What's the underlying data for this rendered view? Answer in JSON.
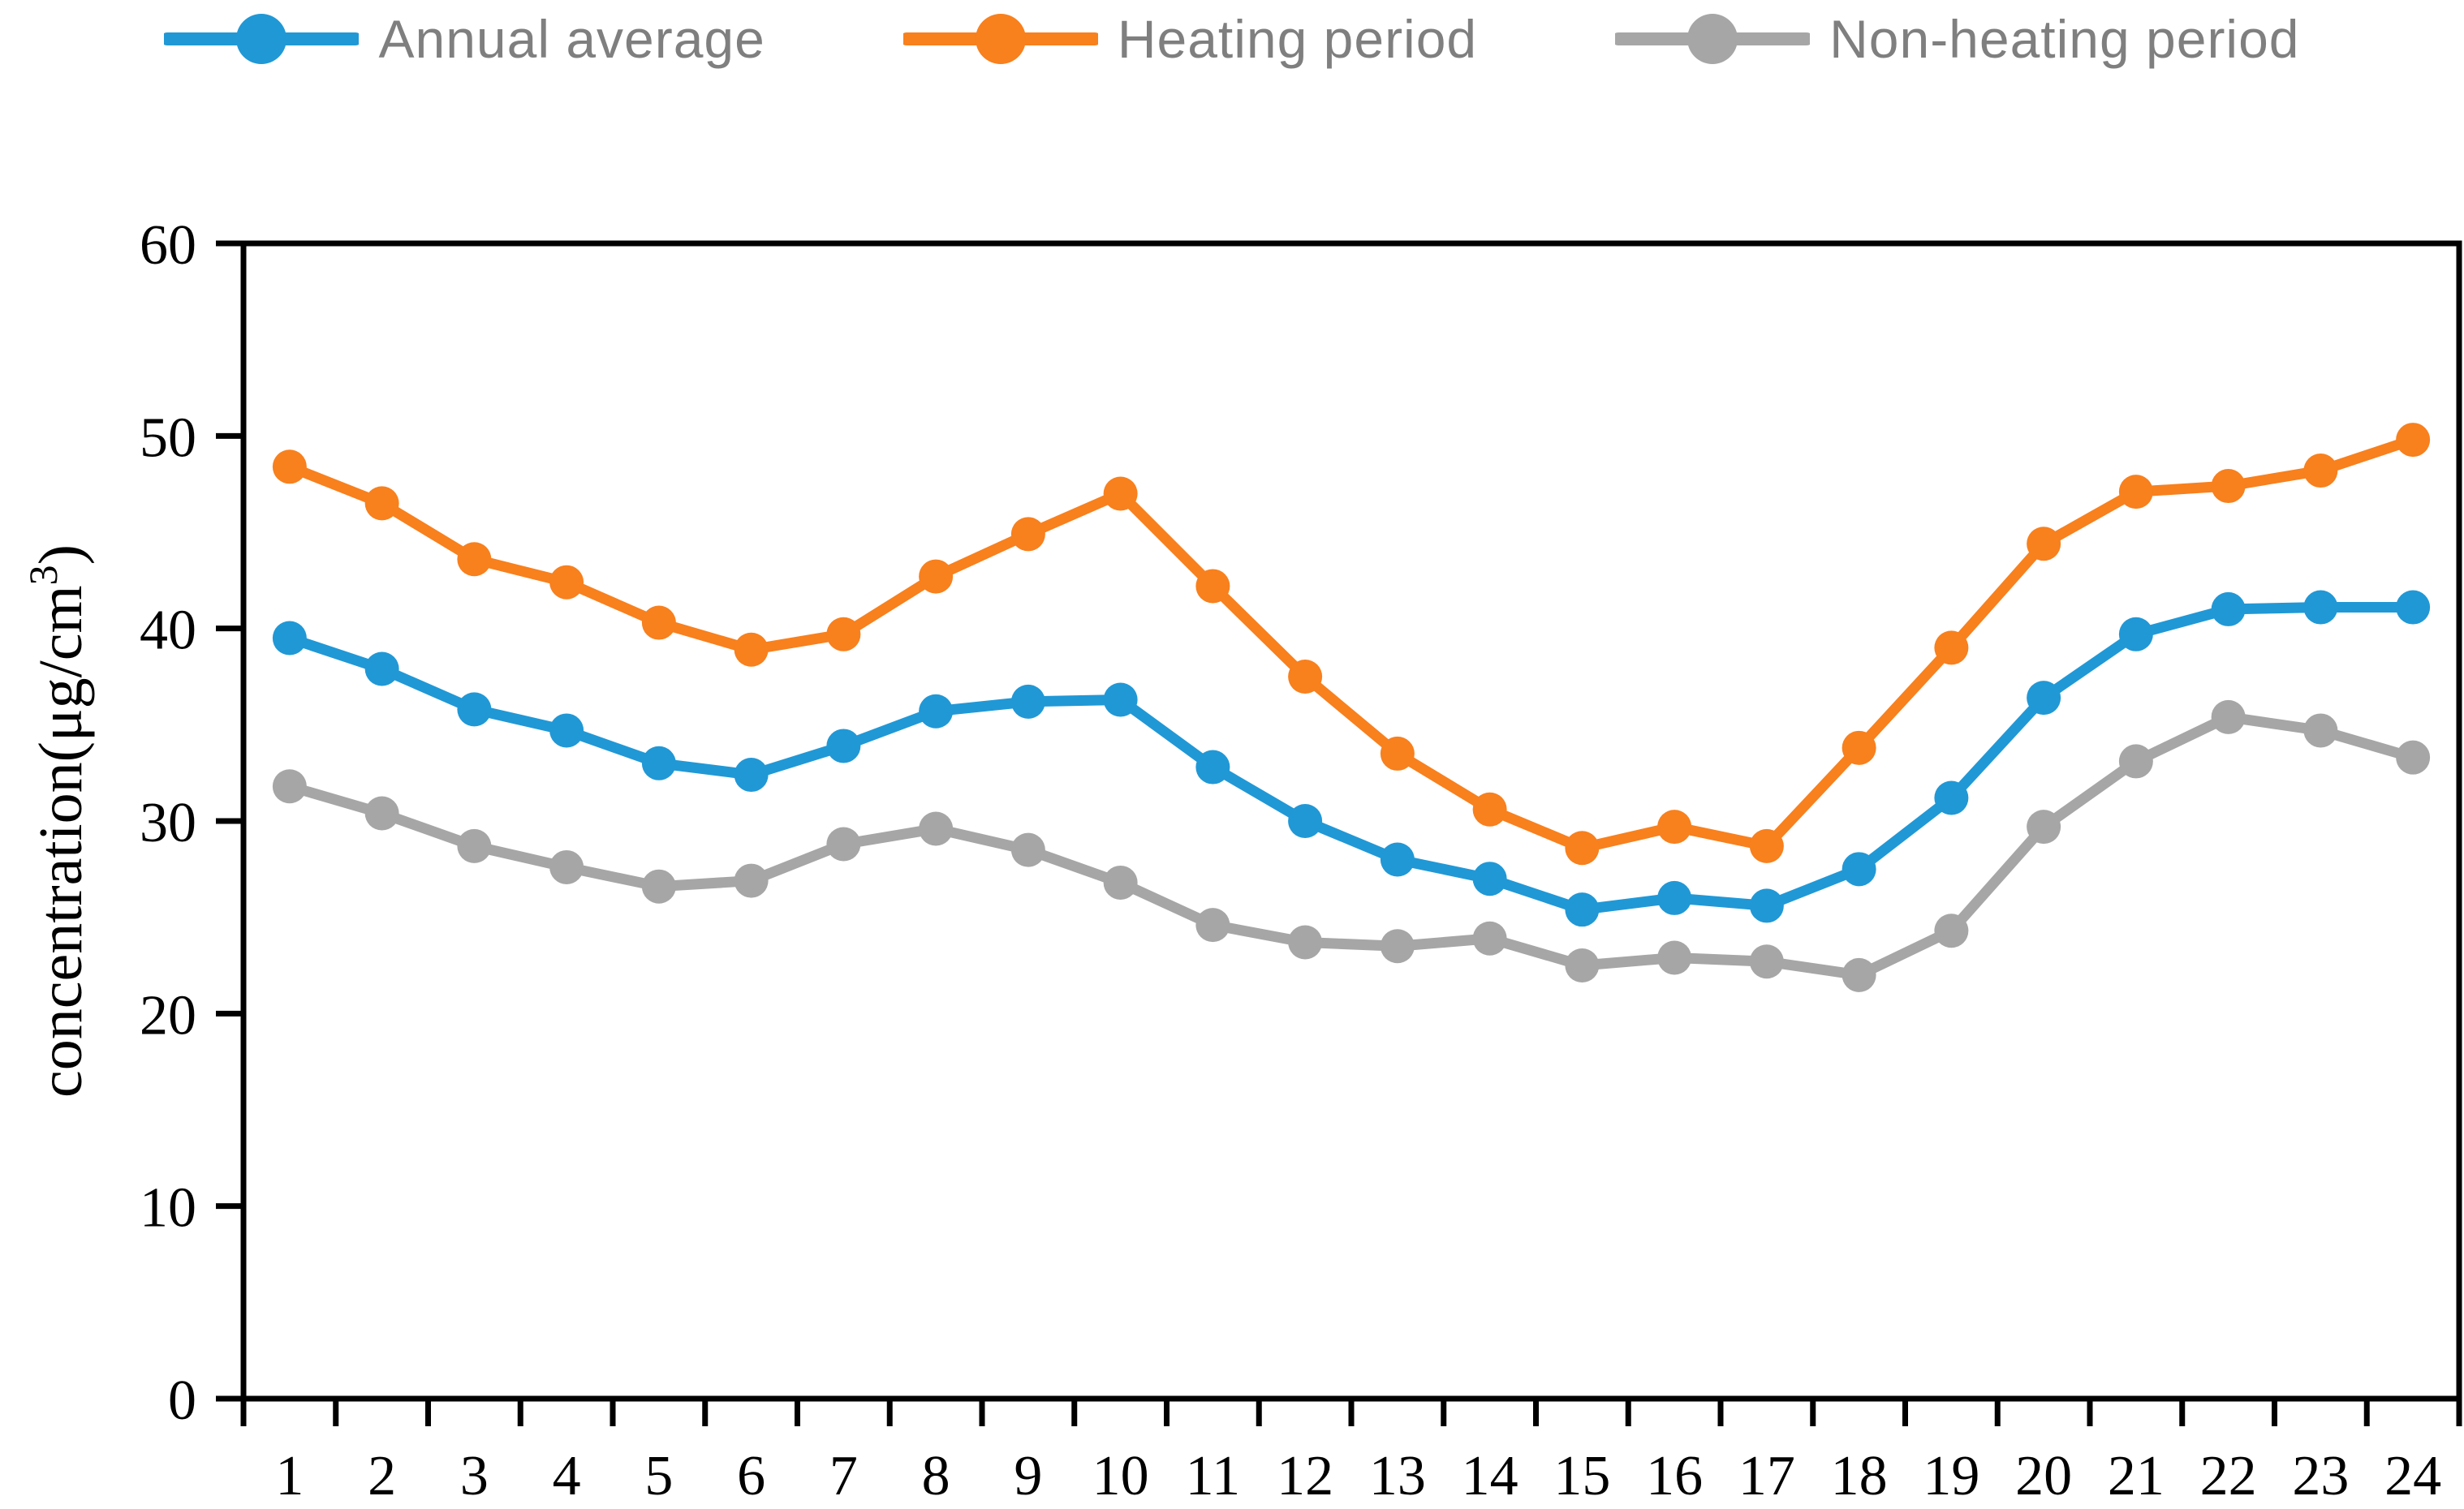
{
  "chart_data": {
    "type": "line",
    "x": [
      1,
      2,
      3,
      4,
      5,
      6,
      7,
      8,
      9,
      10,
      11,
      12,
      13,
      14,
      15,
      16,
      17,
      18,
      19,
      20,
      21,
      22,
      23,
      24
    ],
    "xlabel": "",
    "ylabel_prefix": "concentration(μg/cm",
    "ylabel_superscript": "3",
    "ylabel_suffix": ")",
    "ylim": [
      0,
      60
    ],
    "yticks": [
      0,
      10,
      20,
      30,
      40,
      50,
      60
    ],
    "grid": false,
    "legend_position": "top",
    "axis_color": "#000000",
    "legend_text_color": "#7f7f7f",
    "series": [
      {
        "name": "Annual average",
        "color": "#2098d6",
        "values": [
          39.5,
          37.9,
          35.8,
          34.7,
          33.0,
          32.4,
          33.9,
          35.7,
          36.2,
          36.3,
          32.8,
          30.0,
          28.0,
          27.0,
          25.4,
          26.0,
          25.6,
          27.5,
          31.2,
          36.4,
          39.7,
          41.0,
          41.1,
          41.1
        ]
      },
      {
        "name": "Heating period",
        "color": "#f8801d",
        "values": [
          48.4,
          46.5,
          43.6,
          42.4,
          40.3,
          38.9,
          39.7,
          42.7,
          44.9,
          47.0,
          42.2,
          37.5,
          33.5,
          30.6,
          28.6,
          29.7,
          28.7,
          33.8,
          39.0,
          44.4,
          47.1,
          47.4,
          48.2,
          49.8
        ]
      },
      {
        "name": "Non-heating period",
        "color": "#a6a6a6",
        "values": [
          31.8,
          30.4,
          28.7,
          27.6,
          26.6,
          26.9,
          28.8,
          29.6,
          28.5,
          26.8,
          24.6,
          23.7,
          23.5,
          23.9,
          22.5,
          22.9,
          22.7,
          22.0,
          24.3,
          29.7,
          33.1,
          35.4,
          34.7,
          33.3
        ]
      }
    ]
  }
}
